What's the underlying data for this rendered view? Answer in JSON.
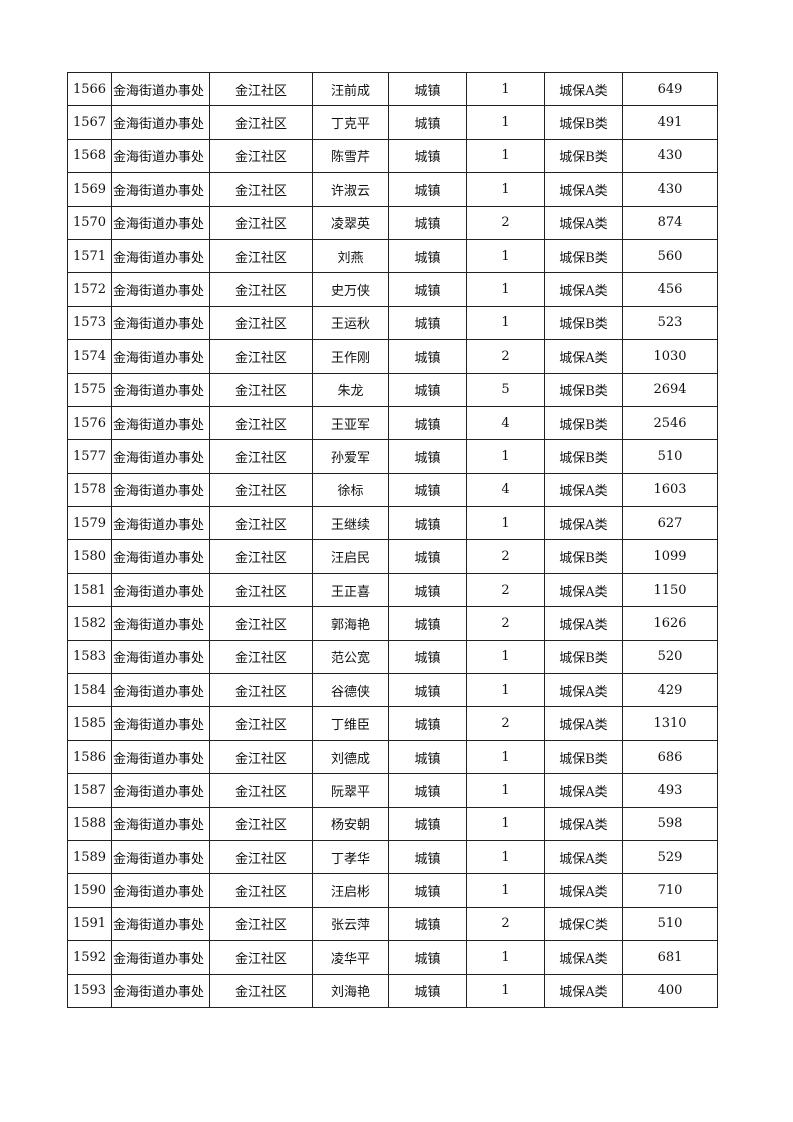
{
  "columns": [
    "id",
    "district",
    "community",
    "name",
    "area",
    "count",
    "category",
    "amount"
  ],
  "rows": [
    [
      "1566",
      "金海街道办事处",
      "金江社区",
      "汪前成",
      "城镇",
      "1",
      "城保A类",
      "649"
    ],
    [
      "1567",
      "金海街道办事处",
      "金江社区",
      "丁克平",
      "城镇",
      "1",
      "城保B类",
      "491"
    ],
    [
      "1568",
      "金海街道办事处",
      "金江社区",
      "陈雪芹",
      "城镇",
      "1",
      "城保B类",
      "430"
    ],
    [
      "1569",
      "金海街道办事处",
      "金江社区",
      "许淑云",
      "城镇",
      "1",
      "城保A类",
      "430"
    ],
    [
      "1570",
      "金海街道办事处",
      "金江社区",
      "凌翠英",
      "城镇",
      "2",
      "城保A类",
      "874"
    ],
    [
      "1571",
      "金海街道办事处",
      "金江社区",
      "刘燕",
      "城镇",
      "1",
      "城保B类",
      "560"
    ],
    [
      "1572",
      "金海街道办事处",
      "金江社区",
      "史万侠",
      "城镇",
      "1",
      "城保A类",
      "456"
    ],
    [
      "1573",
      "金海街道办事处",
      "金江社区",
      "王运秋",
      "城镇",
      "1",
      "城保B类",
      "523"
    ],
    [
      "1574",
      "金海街道办事处",
      "金江社区",
      "王作刚",
      "城镇",
      "2",
      "城保A类",
      "1030"
    ],
    [
      "1575",
      "金海街道办事处",
      "金江社区",
      "朱龙",
      "城镇",
      "5",
      "城保B类",
      "2694"
    ],
    [
      "1576",
      "金海街道办事处",
      "金江社区",
      "王亚军",
      "城镇",
      "4",
      "城保B类",
      "2546"
    ],
    [
      "1577",
      "金海街道办事处",
      "金江社区",
      "孙爱军",
      "城镇",
      "1",
      "城保B类",
      "510"
    ],
    [
      "1578",
      "金海街道办事处",
      "金江社区",
      "徐标",
      "城镇",
      "4",
      "城保A类",
      "1603"
    ],
    [
      "1579",
      "金海街道办事处",
      "金江社区",
      "王继续",
      "城镇",
      "1",
      "城保A类",
      "627"
    ],
    [
      "1580",
      "金海街道办事处",
      "金江社区",
      "汪启民",
      "城镇",
      "2",
      "城保B类",
      "1099"
    ],
    [
      "1581",
      "金海街道办事处",
      "金江社区",
      "王正喜",
      "城镇",
      "2",
      "城保A类",
      "1150"
    ],
    [
      "1582",
      "金海街道办事处",
      "金江社区",
      "郭海艳",
      "城镇",
      "2",
      "城保A类",
      "1626"
    ],
    [
      "1583",
      "金海街道办事处",
      "金江社区",
      "范公宽",
      "城镇",
      "1",
      "城保B类",
      "520"
    ],
    [
      "1584",
      "金海街道办事处",
      "金江社区",
      "谷德侠",
      "城镇",
      "1",
      "城保A类",
      "429"
    ],
    [
      "1585",
      "金海街道办事处",
      "金江社区",
      "丁维臣",
      "城镇",
      "2",
      "城保A类",
      "1310"
    ],
    [
      "1586",
      "金海街道办事处",
      "金江社区",
      "刘德成",
      "城镇",
      "1",
      "城保B类",
      "686"
    ],
    [
      "1587",
      "金海街道办事处",
      "金江社区",
      "阮翠平",
      "城镇",
      "1",
      "城保A类",
      "493"
    ],
    [
      "1588",
      "金海街道办事处",
      "金江社区",
      "杨安朝",
      "城镇",
      "1",
      "城保A类",
      "598"
    ],
    [
      "1589",
      "金海街道办事处",
      "金江社区",
      "丁孝华",
      "城镇",
      "1",
      "城保A类",
      "529"
    ],
    [
      "1590",
      "金海街道办事处",
      "金江社区",
      "汪启彬",
      "城镇",
      "1",
      "城保A类",
      "710"
    ],
    [
      "1591",
      "金海街道办事处",
      "金江社区",
      "张云萍",
      "城镇",
      "2",
      "城保C类",
      "510"
    ],
    [
      "1592",
      "金海街道办事处",
      "金江社区",
      "凌华平",
      "城镇",
      "1",
      "城保A类",
      "681"
    ],
    [
      "1593",
      "金海街道办事处",
      "金江社区",
      "刘海艳",
      "城镇",
      "1",
      "城保A类",
      "400"
    ]
  ]
}
